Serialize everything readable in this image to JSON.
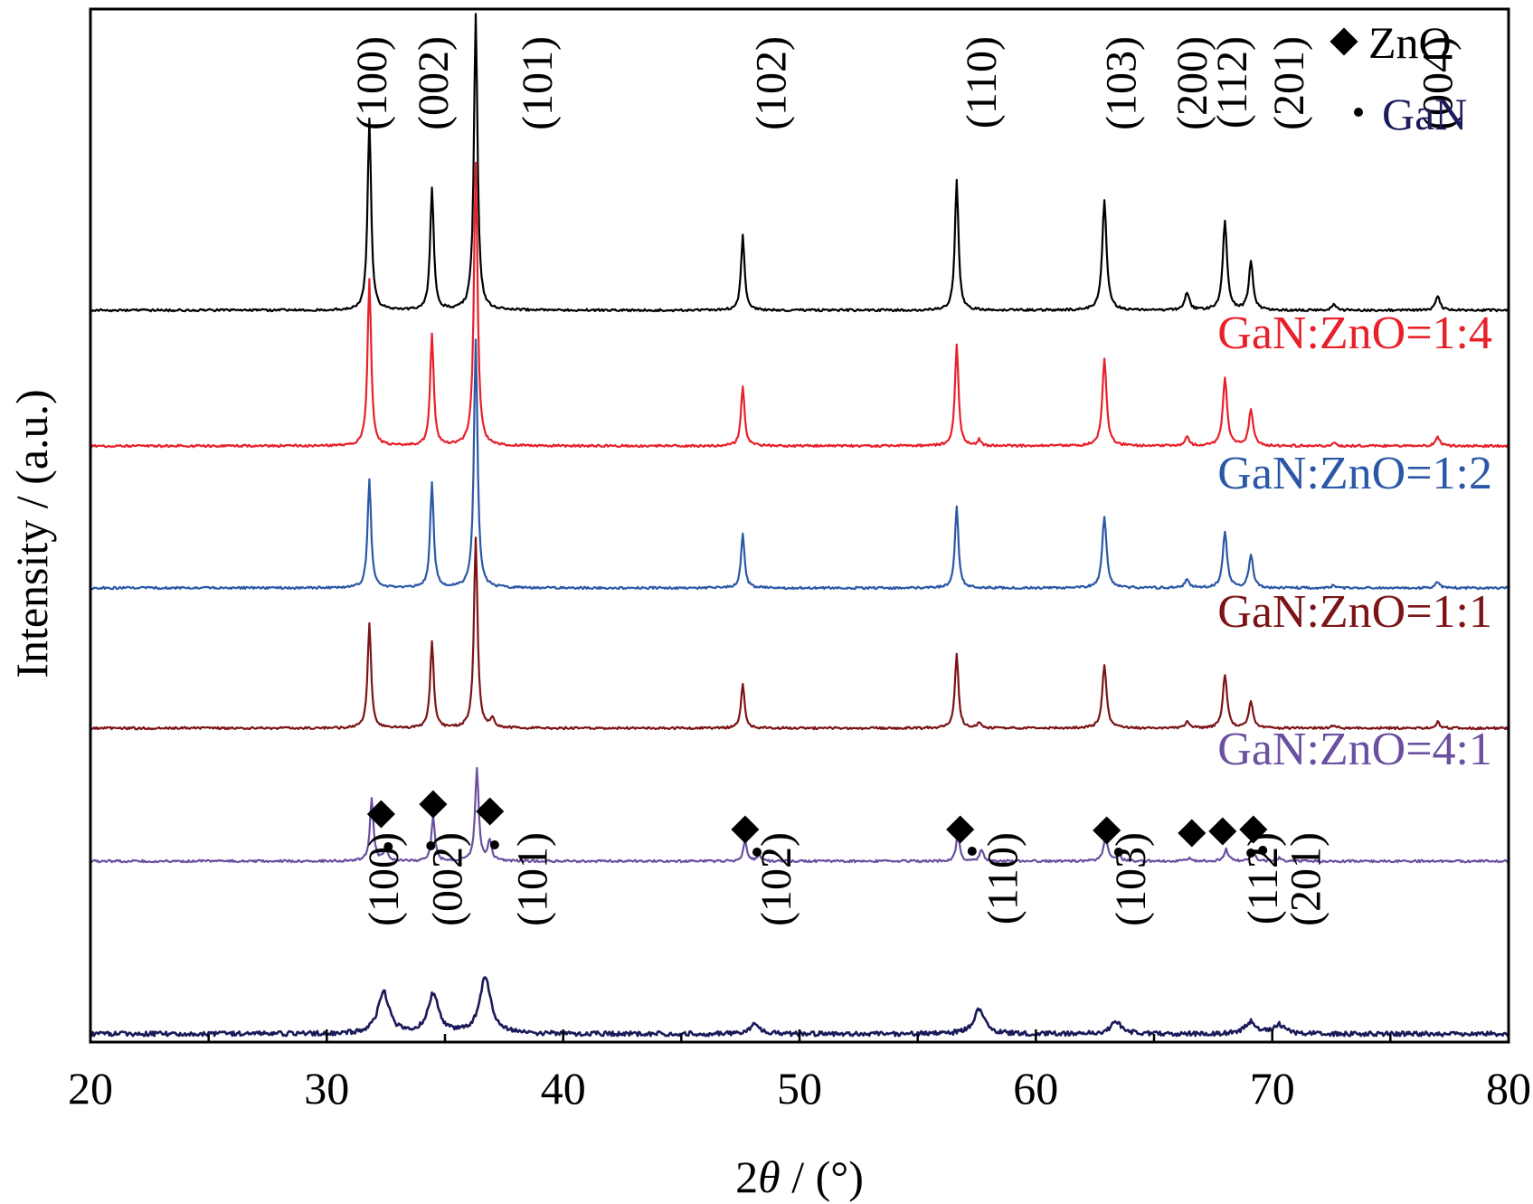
{
  "chart_data": {
    "type": "line",
    "xlabel_prefix": "2",
    "xlabel_symbol": "θ",
    "xlabel_suffix": " / (°)",
    "ylabel": "Intensity / (a.u.)",
    "xlim": [
      20,
      80
    ],
    "x_ticks": [
      "20",
      "30",
      "40",
      "50",
      "60",
      "70",
      "80"
    ],
    "legend_position": "top-right",
    "legend": [
      {
        "marker": "diamond",
        "label": "ZnO",
        "color": "#000000"
      },
      {
        "marker": "dot",
        "label": "GaN",
        "color": "#1c1c5c"
      }
    ],
    "series": [
      {
        "name": "",
        "color": "#000000",
        "peaks": [
          [
            31.8,
            0.64
          ],
          [
            34.45,
            0.41
          ],
          [
            36.3,
            0.99
          ],
          [
            47.6,
            0.25
          ],
          [
            56.65,
            0.44
          ],
          [
            62.9,
            0.37
          ],
          [
            66.4,
            0.06
          ],
          [
            68.0,
            0.3
          ],
          [
            69.1,
            0.16
          ],
          [
            72.6,
            0.02
          ],
          [
            77.0,
            0.05
          ]
        ],
        "labels": [
          {
            "x": 31.9,
            "text": "(100)"
          },
          {
            "x": 34.5,
            "text": "(002)"
          },
          {
            "x": 38.9,
            "text": "(101)"
          },
          {
            "x": 48.8,
            "text": "(102)"
          },
          {
            "x": 57.7,
            "text": "(110)"
          },
          {
            "x": 63.6,
            "text": "(103)"
          },
          {
            "x": 66.6,
            "text": "(200)"
          },
          {
            "x": 68.3,
            "text": "(112)"
          },
          {
            "x": 70.7,
            "text": "(201)"
          },
          {
            "x": 77.0,
            "text": "(004)"
          }
        ]
      },
      {
        "name": "GaN:ZnO=1:4",
        "color": "#e8202a",
        "peaks": [
          [
            31.8,
            0.56
          ],
          [
            34.45,
            0.37
          ],
          [
            36.3,
            0.95
          ],
          [
            47.6,
            0.2
          ],
          [
            56.65,
            0.34
          ],
          [
            57.6,
            0.02
          ],
          [
            62.9,
            0.29
          ],
          [
            66.4,
            0.03
          ],
          [
            68.0,
            0.23
          ],
          [
            69.1,
            0.12
          ],
          [
            72.6,
            0.01
          ],
          [
            77.0,
            0.03
          ]
        ],
        "labels": []
      },
      {
        "name": "GaN:ZnO=1:2",
        "color": "#2b58a6",
        "peaks": [
          [
            31.8,
            0.36
          ],
          [
            34.45,
            0.35
          ],
          [
            36.3,
            0.83
          ],
          [
            47.6,
            0.18
          ],
          [
            56.65,
            0.27
          ],
          [
            62.9,
            0.24
          ],
          [
            66.4,
            0.03
          ],
          [
            68.0,
            0.19
          ],
          [
            69.1,
            0.11
          ],
          [
            72.6,
            0.01
          ],
          [
            77.0,
            0.02
          ]
        ],
        "labels": []
      },
      {
        "name": "GaN:ZnO=1:1",
        "color": "#7b1416",
        "peaks": [
          [
            31.8,
            0.35
          ],
          [
            34.45,
            0.29
          ],
          [
            36.3,
            0.64
          ],
          [
            37.0,
            0.03
          ],
          [
            47.6,
            0.15
          ],
          [
            56.65,
            0.25
          ],
          [
            57.6,
            0.02
          ],
          [
            62.9,
            0.21
          ],
          [
            66.4,
            0.02
          ],
          [
            68.0,
            0.18
          ],
          [
            69.1,
            0.09
          ],
          [
            72.6,
            0.01
          ],
          [
            77.0,
            0.02
          ]
        ],
        "labels": []
      },
      {
        "name": "GaN:ZnO=4:1",
        "color": "#6a50a0",
        "peaks": [
          [
            31.9,
            0.21
          ],
          [
            32.5,
            0.05
          ],
          [
            34.5,
            0.15
          ],
          [
            36.35,
            0.31
          ],
          [
            36.9,
            0.07
          ],
          [
            47.7,
            0.07
          ],
          [
            48.3,
            0.02
          ],
          [
            56.7,
            0.09
          ],
          [
            57.7,
            0.04
          ],
          [
            62.95,
            0.08
          ],
          [
            63.5,
            0.02
          ],
          [
            66.5,
            0.01
          ],
          [
            68.05,
            0.04
          ],
          [
            69.2,
            0.03
          ],
          [
            70.3,
            0.01
          ]
        ],
        "labels": [],
        "markers": [
          {
            "x": 32.3,
            "type": "diamond",
            "dy": -12
          },
          {
            "x": 32.6,
            "type": "dot",
            "dy": 2
          },
          {
            "x": 34.5,
            "type": "diamond",
            "dy": -13
          },
          {
            "x": 34.4,
            "type": "dot",
            "dy": 1
          },
          {
            "x": 36.9,
            "type": "diamond",
            "dy": -15
          },
          {
            "x": 37.1,
            "type": "dot",
            "dy": 0
          },
          {
            "x": 47.7,
            "type": "diamond",
            "dy": 5
          },
          {
            "x": 48.2,
            "type": "dot",
            "dy": 8
          },
          {
            "x": 56.8,
            "type": "diamond",
            "dy": 5
          },
          {
            "x": 57.3,
            "type": "dot",
            "dy": 7
          },
          {
            "x": 63.0,
            "type": "diamond",
            "dy": 6
          },
          {
            "x": 63.5,
            "type": "dot",
            "dy": 8
          },
          {
            "x": 66.6,
            "type": "diamond",
            "dy": 9
          },
          {
            "x": 67.9,
            "type": "diamond",
            "dy": 7
          },
          {
            "x": 69.2,
            "type": "diamond",
            "dy": 5
          },
          {
            "x": 69.6,
            "type": "dot",
            "dy": 6
          },
          {
            "x": 69.1,
            "type": "dot",
            "dy": 9
          }
        ]
      },
      {
        "name": "",
        "color": "#1a1a5a",
        "peaks": [
          [
            32.4,
            0.14
          ],
          [
            34.5,
            0.13
          ],
          [
            36.7,
            0.19
          ],
          [
            48.1,
            0.03
          ],
          [
            57.6,
            0.08
          ],
          [
            63.4,
            0.04
          ],
          [
            69.1,
            0.04
          ],
          [
            70.3,
            0.03
          ]
        ],
        "labels": [
          {
            "x": 32.4,
            "text": "(100)"
          },
          {
            "x": 35.1,
            "text": "(002)"
          },
          {
            "x": 38.7,
            "text": "(101)"
          },
          {
            "x": 49.0,
            "text": "(102)"
          },
          {
            "x": 58.6,
            "text": "(110)"
          },
          {
            "x": 64.0,
            "text": "(103)"
          },
          {
            "x": 69.6,
            "text": "(112)"
          },
          {
            "x": 71.4,
            "text": "(201)"
          }
        ]
      }
    ]
  }
}
